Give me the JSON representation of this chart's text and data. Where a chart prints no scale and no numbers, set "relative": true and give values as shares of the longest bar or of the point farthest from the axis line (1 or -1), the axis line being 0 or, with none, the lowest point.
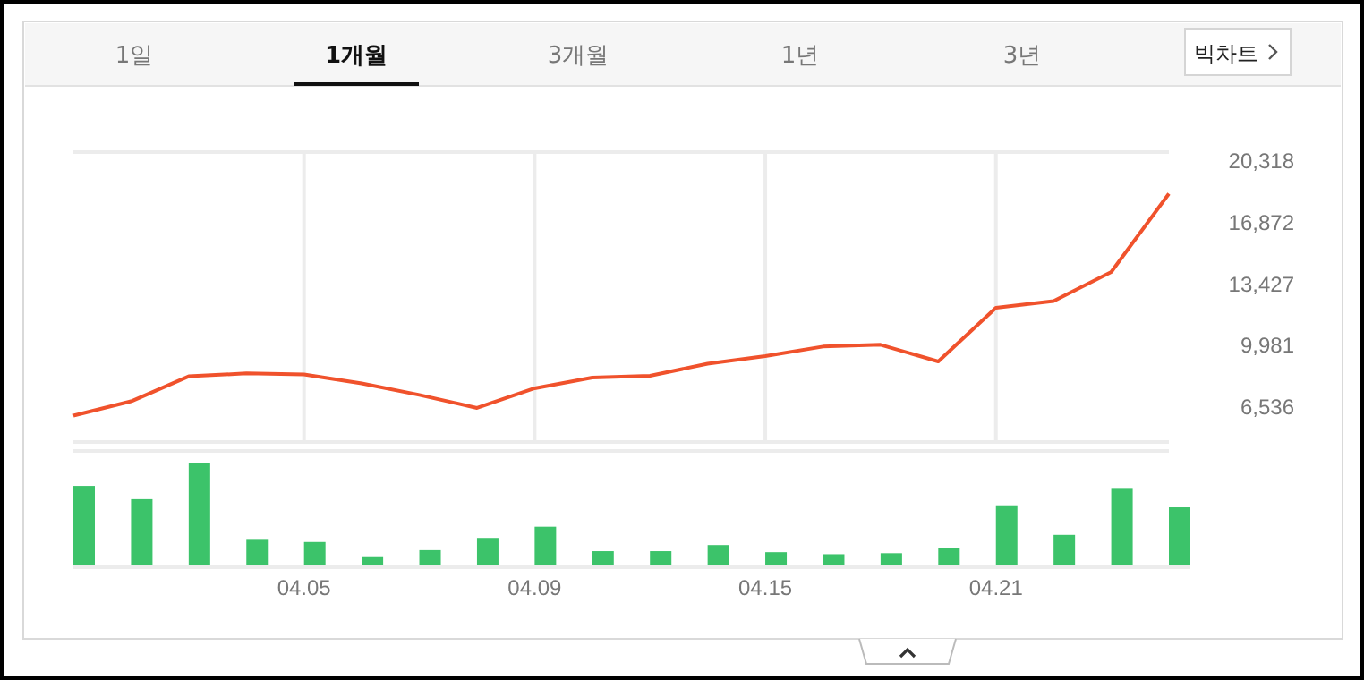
{
  "chart_data": [
    {
      "type": "line",
      "categories": [
        null,
        null,
        null,
        null,
        "04.05",
        null,
        null,
        null,
        "04.09",
        null,
        null,
        null,
        "04.15",
        null,
        null,
        null,
        "04.21",
        null,
        null,
        null
      ],
      "series": [
        {
          "color": "#f0522c",
          "values": [
            6090,
            6890,
            8290,
            8450,
            8390,
            7890,
            7250,
            6520,
            7620,
            8220,
            8320,
            8990,
            9420,
            9950,
            10050,
            9120,
            12120,
            12490,
            14120,
            18490
          ]
        }
      ],
      "ylim": [
        4618,
        20818
      ],
      "yticks": [
        {
          "value": 6536,
          "label": "6,536"
        },
        {
          "value": 9981,
          "label": "9,981"
        },
        {
          "value": 13427,
          "label": "13,427"
        },
        {
          "value": 16872,
          "label": "16,872"
        },
        {
          "value": 20318,
          "label": "20,318"
        }
      ],
      "grid": "x",
      "tick_labels": "y",
      "marker": "none",
      "line_style": "solid"
    },
    {
      "type": "bar",
      "relative": true,
      "categories": [
        null,
        null,
        null,
        null,
        "04.05",
        null,
        null,
        null,
        "04.09",
        null,
        null,
        null,
        "04.15",
        null,
        null,
        null,
        "04.21",
        null,
        null,
        null
      ],
      "series": [
        {
          "color": "#3cc36a",
          "values": [
            0.78,
            0.65,
            1,
            0.26,
            0.23,
            0.09,
            0.15,
            0.27,
            0.38,
            0.14,
            0.14,
            0.2,
            0.13,
            0.11,
            0.12,
            0.17,
            0.59,
            0.3,
            0.76,
            0.57
          ]
        }
      ],
      "tick_labels": "x"
    },
    {
      "type": "other",
      "annotations": [
        "1일",
        "1개월",
        "3개월",
        "1년",
        "3년",
        "빅차트"
      ]
    }
  ]
}
